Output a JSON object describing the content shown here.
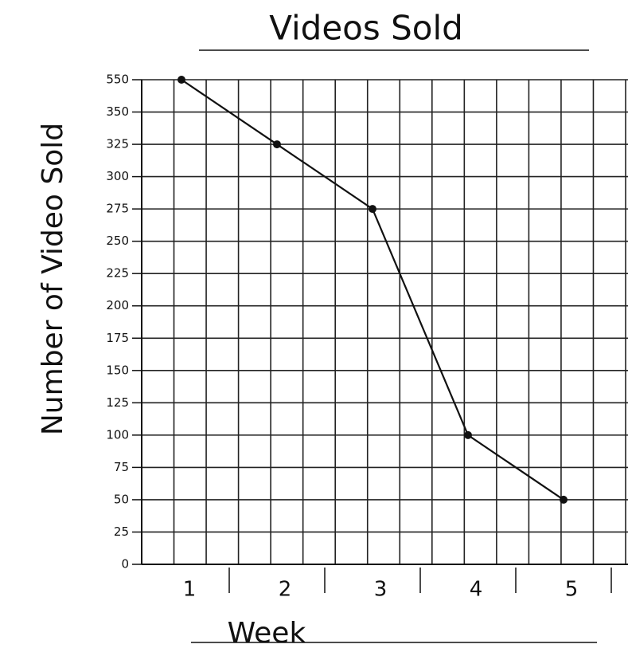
{
  "chart_data": {
    "type": "line",
    "title": "Videos Sold",
    "x_label": "Week",
    "y_label": "Number of Video Sold",
    "categories": [
      "1",
      "2",
      "3",
      "4",
      "5"
    ],
    "values": [
      550,
      325,
      275,
      100,
      50
    ],
    "color": "#111111",
    "ylim": [
      0,
      550
    ],
    "yticks": [
      0,
      25,
      50,
      75,
      100,
      125,
      150,
      175,
      200,
      225,
      250,
      275,
      300,
      325,
      350,
      550
    ],
    "grid": true
  }
}
